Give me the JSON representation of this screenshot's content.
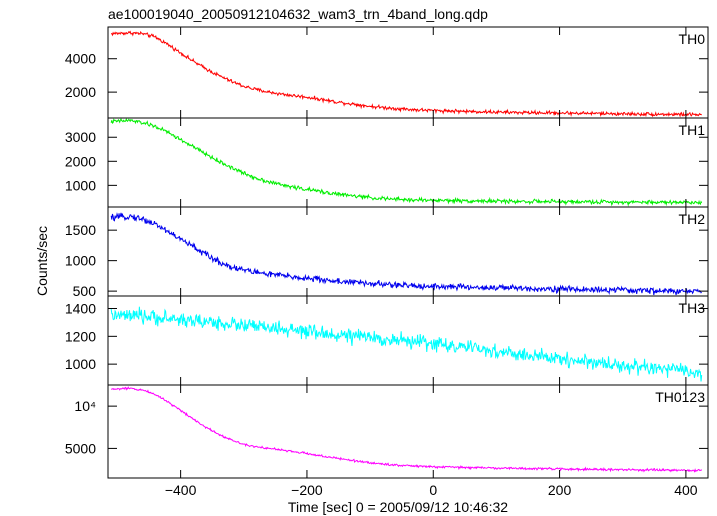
{
  "chart_data": {
    "type": "line",
    "title": "ae100019040_20050912104632_wam3_trn_4band_long.qdp",
    "xlabel": "Time [sec] 0 = 2005/09/12 10:46:32",
    "ylabel": "Counts/sec",
    "xlim": [
      -515,
      435
    ],
    "x_ticks": [
      {
        "value": -400,
        "label": "−400"
      },
      {
        "value": -200,
        "label": "−200"
      },
      {
        "value": 0,
        "label": "0"
      },
      {
        "value": 200,
        "label": "200"
      },
      {
        "value": 400,
        "label": "400"
      }
    ],
    "grid": false,
    "panels": [
      {
        "name": "TH0",
        "color": "#ff0000",
        "ylim": [
          450,
          5900
        ],
        "y_ticks": [
          {
            "value": 2000,
            "label": "2000"
          },
          {
            "value": 4000,
            "label": "4000"
          }
        ],
        "noise": 90,
        "x": [
          -510,
          -480,
          -460,
          -440,
          -420,
          -400,
          -380,
          -360,
          -340,
          -320,
          -300,
          -280,
          -260,
          -240,
          -220,
          -200,
          -180,
          -160,
          -140,
          -120,
          -100,
          -80,
          -60,
          -40,
          -20,
          0,
          50,
          100,
          150,
          200,
          250,
          300,
          350,
          400,
          425
        ],
        "y": [
          5500,
          5550,
          5500,
          5300,
          4850,
          4350,
          3850,
          3400,
          3000,
          2650,
          2350,
          2150,
          2000,
          1880,
          1780,
          1700,
          1580,
          1450,
          1350,
          1250,
          1150,
          1080,
          1020,
          970,
          930,
          900,
          850,
          800,
          770,
          750,
          730,
          700,
          680,
          660,
          650
        ]
      },
      {
        "name": "TH1",
        "color": "#00ee00",
        "ylim": [
          100,
          3800
        ],
        "y_ticks": [
          {
            "value": 1000,
            "label": "1000"
          },
          {
            "value": 2000,
            "label": "2000"
          },
          {
            "value": 3000,
            "label": "3000"
          }
        ],
        "noise": 70,
        "x": [
          -510,
          -480,
          -460,
          -440,
          -420,
          -400,
          -380,
          -360,
          -340,
          -320,
          -300,
          -280,
          -260,
          -240,
          -220,
          -200,
          -180,
          -160,
          -140,
          -120,
          -100,
          -80,
          -60,
          -40,
          -20,
          0,
          50,
          100,
          150,
          200,
          250,
          300,
          350,
          400,
          425
        ],
        "y": [
          3650,
          3700,
          3600,
          3450,
          3200,
          2900,
          2600,
          2300,
          2000,
          1750,
          1500,
          1300,
          1150,
          1020,
          920,
          830,
          750,
          670,
          600,
          540,
          490,
          450,
          420,
          400,
          390,
          380,
          360,
          340,
          330,
          320,
          310,
          305,
          300,
          295,
          290
        ]
      },
      {
        "name": "TH2",
        "color": "#0000ee",
        "ylim": [
          420,
          1880
        ],
        "y_ticks": [
          {
            "value": 500,
            "label": "500"
          },
          {
            "value": 1000,
            "label": "1000"
          },
          {
            "value": 1500,
            "label": "1500"
          }
        ],
        "noise": 45,
        "x": [
          -510,
          -480,
          -460,
          -440,
          -420,
          -400,
          -380,
          -360,
          -340,
          -320,
          -300,
          -280,
          -260,
          -240,
          -220,
          -200,
          -180,
          -160,
          -140,
          -120,
          -100,
          -80,
          -60,
          -40,
          -20,
          0,
          50,
          100,
          150,
          200,
          250,
          300,
          350,
          400,
          425
        ],
        "y": [
          1700,
          1730,
          1680,
          1600,
          1480,
          1350,
          1230,
          1100,
          980,
          900,
          850,
          810,
          780,
          755,
          730,
          710,
          690,
          670,
          655,
          640,
          625,
          610,
          600,
          590,
          585,
          580,
          565,
          555,
          545,
          535,
          525,
          515,
          505,
          495,
          490
        ]
      },
      {
        "name": "TH3",
        "color": "#00ffff",
        "ylim": [
          850,
          1490
        ],
        "y_ticks": [
          {
            "value": 1000,
            "label": "1000"
          },
          {
            "value": 1200,
            "label": "1200"
          },
          {
            "value": 1400,
            "label": "1400"
          }
        ],
        "noise": 45,
        "x": [
          -510,
          -450,
          -400,
          -350,
          -300,
          -250,
          -200,
          -150,
          -100,
          -50,
          0,
          50,
          100,
          150,
          200,
          250,
          300,
          350,
          400,
          425
        ],
        "y": [
          1350,
          1340,
          1320,
          1300,
          1280,
          1255,
          1230,
          1210,
          1190,
          1170,
          1150,
          1120,
          1090,
          1060,
          1040,
          1015,
          990,
          970,
          950,
          930
        ]
      },
      {
        "name": "TH0123",
        "color": "#ff00ff",
        "ylim": [
          1500,
          12500
        ],
        "y_ticks": [
          {
            "value": 5000,
            "label": "5000"
          },
          {
            "value": 10000,
            "label": "10⁴"
          }
        ],
        "noise": 110,
        "x": [
          -510,
          -480,
          -460,
          -440,
          -420,
          -400,
          -380,
          -360,
          -340,
          -320,
          -300,
          -280,
          -260,
          -240,
          -220,
          -200,
          -180,
          -160,
          -140,
          -120,
          -100,
          -80,
          -60,
          -40,
          -20,
          0,
          50,
          100,
          150,
          200,
          250,
          300,
          350,
          400,
          425
        ],
        "y": [
          12000,
          12100,
          11900,
          11400,
          10500,
          9500,
          8500,
          7500,
          6700,
          6000,
          5500,
          5200,
          5000,
          4800,
          4600,
          4400,
          4150,
          3900,
          3700,
          3500,
          3300,
          3150,
          3050,
          2950,
          2880,
          2820,
          2750,
          2680,
          2620,
          2570,
          2520,
          2480,
          2440,
          2400,
          2380
        ]
      }
    ]
  }
}
